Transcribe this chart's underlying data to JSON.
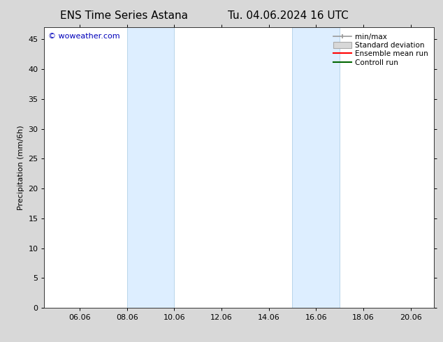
{
  "title_left": "ENS Time Series Astana",
  "title_right": "Tu. 04.06.2024 16 UTC",
  "ylabel": "Precipitation (mm/6h)",
  "xlabel": "",
  "xlim": [
    4.5,
    21.0
  ],
  "ylim": [
    0,
    47
  ],
  "yticks": [
    0,
    5,
    10,
    15,
    20,
    25,
    30,
    35,
    40,
    45
  ],
  "xticks": [
    6.0,
    8.0,
    10.0,
    12.0,
    14.0,
    16.0,
    18.0,
    20.0
  ],
  "xticklabels": [
    "06.06",
    "08.06",
    "10.06",
    "12.06",
    "14.06",
    "16.06",
    "18.06",
    "20.06"
  ],
  "shade_bands": [
    {
      "xmin": 8.0,
      "xmax": 10.0
    },
    {
      "xmin": 15.0,
      "xmax": 17.0
    }
  ],
  "shade_color": "#ddeeff",
  "shade_edge_color": "#b8d4ea",
  "fig_background_color": "#d8d8d8",
  "plot_background_color": "#ffffff",
  "watermark_text": "© woweather.com",
  "watermark_color": "#0000bb",
  "legend_entries": [
    {
      "label": "min/max"
    },
    {
      "label": "Standard deviation"
    },
    {
      "label": "Ensemble mean run"
    },
    {
      "label": "Controll run"
    }
  ],
  "title_fontsize": 11,
  "tick_fontsize": 8,
  "legend_fontsize": 7.5,
  "ylabel_fontsize": 8,
  "watermark_fontsize": 8
}
